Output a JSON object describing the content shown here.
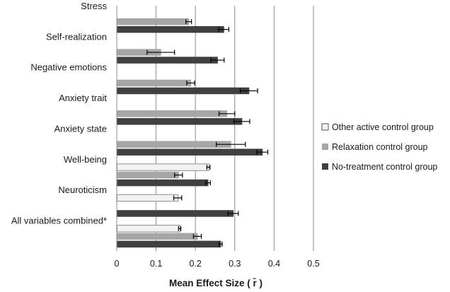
{
  "chart_data": {
    "type": "bar",
    "orientation": "horizontal",
    "xlabel": "Mean Effect Size ( r̄ )",
    "xlim": [
      0,
      0.5
    ],
    "xticks": [
      "0",
      "0.1",
      "0.2",
      "0.3",
      "0.4",
      "0.5"
    ],
    "grid": "vertical",
    "legend_position": "right",
    "categories": [
      "Stress",
      "Self-realization",
      "Negative emotions",
      "Anxiety trait",
      "Anxiety state",
      "Well-being",
      "Neuroticism",
      "All variables combined*"
    ],
    "series": [
      {
        "name": "Other active control group",
        "color": "#f2f2f2",
        "values": [
          null,
          null,
          null,
          null,
          null,
          0.233,
          0.155,
          0.16
        ],
        "errors": [
          null,
          null,
          null,
          null,
          null,
          0.004,
          0.01,
          0.003
        ]
      },
      {
        "name": "Relaxation control group",
        "color": "#a6a6a6",
        "values": [
          0.183,
          0.112,
          0.188,
          0.28,
          0.29,
          0.157,
          null,
          0.205
        ],
        "errors": [
          0.007,
          0.035,
          0.01,
          0.02,
          0.037,
          0.01,
          null,
          0.01
        ]
      },
      {
        "name": "No-treatment control group",
        "color": "#404040",
        "values": [
          0.272,
          0.256,
          0.336,
          0.318,
          0.37,
          0.232,
          0.296,
          0.264
        ],
        "errors": [
          0.013,
          0.017,
          0.022,
          0.02,
          0.014,
          0.006,
          0.013,
          0.004
        ]
      }
    ]
  }
}
